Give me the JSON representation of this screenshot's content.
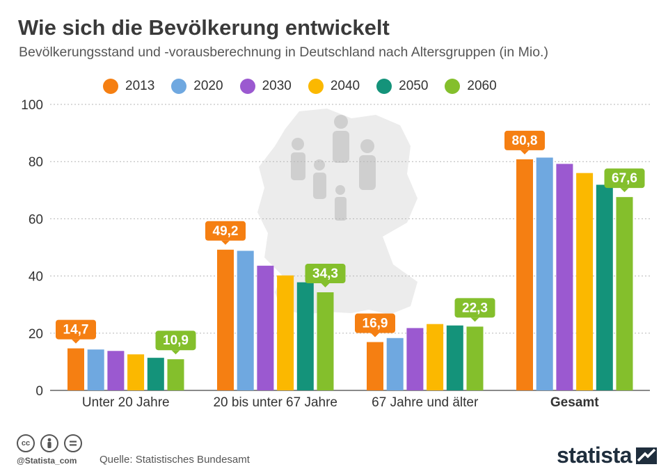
{
  "title": "Wie sich die Bevölkerung entwickelt",
  "subtitle": "Bevölkerungsstand und -vorausberechnung in Deutschland nach Altersgruppen (in Mio.)",
  "colors": [
    "#f57f12",
    "#6fa8e0",
    "#9b59d0",
    "#fbb800",
    "#14937a",
    "#84bf2c"
  ],
  "chart_data": {
    "type": "bar",
    "categories": [
      "Unter 20 Jahre",
      "20 bis unter 67 Jahre",
      "67 Jahre und älter",
      "Gesamt"
    ],
    "series": [
      {
        "name": "2013",
        "values": [
          14.7,
          49.2,
          16.9,
          80.8
        ]
      },
      {
        "name": "2020",
        "values": [
          14.3,
          48.8,
          18.3,
          81.4
        ]
      },
      {
        "name": "2030",
        "values": [
          13.8,
          43.6,
          21.8,
          79.2
        ]
      },
      {
        "name": "2040",
        "values": [
          12.6,
          40.2,
          23.2,
          76.0
        ]
      },
      {
        "name": "2050",
        "values": [
          11.4,
          37.8,
          22.7,
          71.9
        ]
      },
      {
        "name": "2060",
        "values": [
          10.9,
          34.3,
          22.3,
          67.6
        ]
      }
    ],
    "data_labels": [
      {
        "category": 0,
        "series": 0,
        "text": "14,7"
      },
      {
        "category": 0,
        "series": 5,
        "text": "10,9"
      },
      {
        "category": 1,
        "series": 0,
        "text": "49,2"
      },
      {
        "category": 1,
        "series": 5,
        "text": "34,3"
      },
      {
        "category": 2,
        "series": 0,
        "text": "16,9"
      },
      {
        "category": 2,
        "series": 5,
        "text": "22,3"
      },
      {
        "category": 3,
        "series": 0,
        "text": "80,8"
      },
      {
        "category": 3,
        "series": 5,
        "text": "67,6"
      }
    ],
    "bold_category": "Gesamt",
    "ylim": [
      0,
      100
    ],
    "yticks": [
      0,
      20,
      40,
      60,
      80,
      100
    ],
    "grid": true,
    "legend_position": "top"
  },
  "footer": {
    "handle": "@Statista_com",
    "source": "Quelle: Statistisches Bundesamt",
    "logo": "statista",
    "license_icons": [
      "cc-icon",
      "by-icon",
      "nd-icon"
    ]
  }
}
